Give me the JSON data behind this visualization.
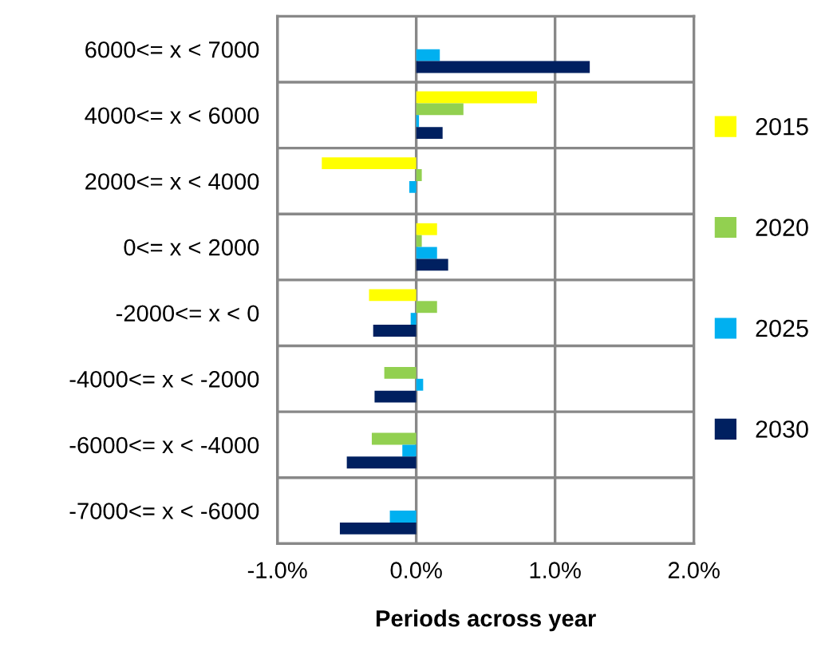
{
  "chart_data": {
    "type": "bar",
    "orientation": "horizontal",
    "xlabel": "Periods across year",
    "categories": [
      "6000<= x < 7000",
      "4000<= x < 6000",
      "2000<= x < 4000",
      "0<= x < 2000",
      "-2000<= x < 0",
      "-4000<= x < -2000",
      "-6000<= x < -4000",
      "-7000<= x < -6000"
    ],
    "series": [
      {
        "name": "2015",
        "color": "#ffff00",
        "values": [
          null,
          0.87,
          -0.68,
          0.15,
          -0.34,
          null,
          null,
          null
        ]
      },
      {
        "name": "2020",
        "color": "#92d050",
        "values": [
          null,
          0.34,
          0.04,
          0.04,
          0.15,
          -0.23,
          -0.32,
          null
        ]
      },
      {
        "name": "2025",
        "color": "#00b0f0",
        "values": [
          0.17,
          0.02,
          -0.05,
          0.15,
          -0.04,
          0.05,
          -0.1,
          -0.19
        ]
      },
      {
        "name": "2030",
        "color": "#002060",
        "values": [
          1.25,
          0.19,
          null,
          0.23,
          -0.31,
          -0.3,
          -0.5,
          -0.55
        ]
      }
    ],
    "xlim": [
      -1,
      2
    ],
    "xticks": [
      {
        "value": -1,
        "label": "-1.0%"
      },
      {
        "value": 0,
        "label": "0.0%"
      },
      {
        "value": 1,
        "label": "1.0%"
      },
      {
        "value": 2,
        "label": "2.0%"
      }
    ],
    "grid": true,
    "legend": "right"
  }
}
